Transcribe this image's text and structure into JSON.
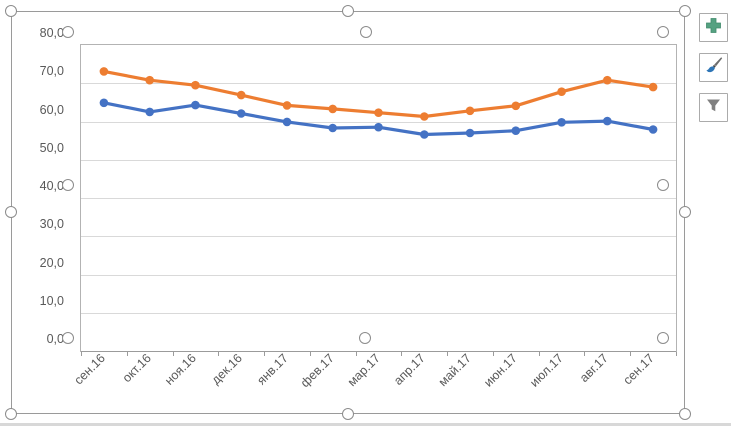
{
  "chart_data": {
    "type": "line",
    "title": "",
    "xlabel": "",
    "ylabel": "",
    "legend": "none",
    "grid": true,
    "marker": "circle",
    "ylim": [
      0,
      80
    ],
    "y_tick_step": 10,
    "y_tick_labels": [
      "0,0",
      "10,0",
      "20,0",
      "30,0",
      "40,0",
      "50,0",
      "60,0",
      "70,0",
      "80,0"
    ],
    "categories": [
      "сен.16",
      "окт.16",
      "ноя.16",
      "дек.16",
      "янв.17",
      "фев.17",
      "мар.17",
      "апр.17",
      "май.17",
      "июн.17",
      "июл.17",
      "авг.17",
      "сен.17"
    ],
    "series": [
      {
        "name": "orange-series",
        "color": "#ED7D31",
        "values": [
          73.1,
          70.8,
          69.5,
          66.9,
          64.2,
          63.3,
          62.3,
          61.3,
          62.8,
          64.1,
          67.8,
          70.8,
          69.0
        ]
      },
      {
        "name": "blue-series",
        "color": "#4472C4",
        "values": [
          64.9,
          62.5,
          64.3,
          62.1,
          59.9,
          58.3,
          58.5,
          56.6,
          57.0,
          57.6,
          59.8,
          60.1,
          57.9
        ]
      }
    ]
  },
  "selection": {
    "chart_selected": true,
    "plot_area_selected": true
  },
  "chart_tools": {
    "buttons": [
      {
        "name": "chart-elements-button",
        "icon": "plus-icon",
        "icon_color": "#55a181"
      },
      {
        "name": "chart-styles-button",
        "icon": "paintbrush-icon",
        "icon_color": "#2E75B6"
      },
      {
        "name": "chart-filters-button",
        "icon": "funnel-icon",
        "icon_color": "#808080"
      }
    ]
  },
  "colors": {
    "gridline": "#d9d9d9",
    "axis_line": "#9b9b9b",
    "plot_border": "#b3b3b3",
    "chart_border": "#9a9a9a",
    "label_text": "#595959"
  }
}
